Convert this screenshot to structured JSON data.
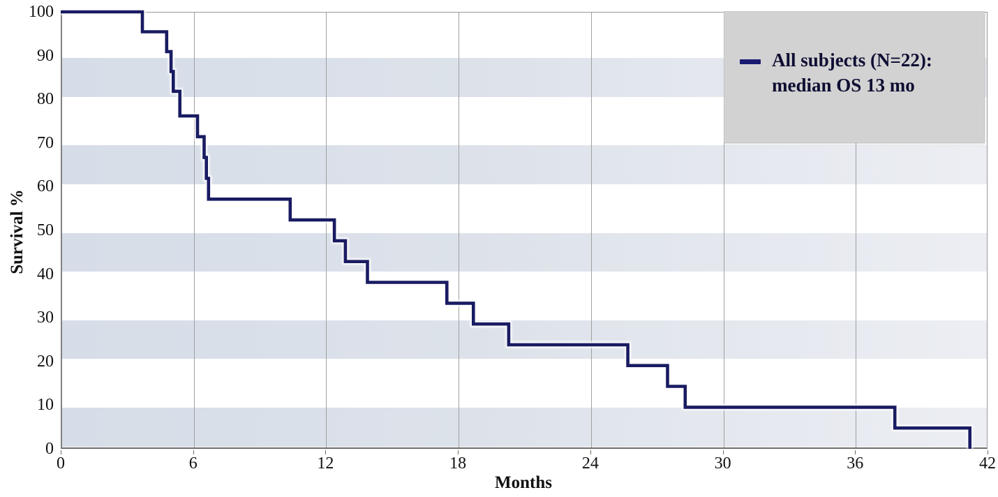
{
  "chart_data": {
    "type": "line",
    "subtype": "kaplan-meier-step",
    "title": "",
    "xlabel": "Months",
    "ylabel": "Survival %",
    "xlim": [
      0,
      42
    ],
    "ylim": [
      0,
      100
    ],
    "x_ticks": [
      0,
      6,
      12,
      18,
      24,
      30,
      36,
      42
    ],
    "y_ticks": [
      0,
      10,
      20,
      30,
      40,
      50,
      60,
      70,
      80,
      90,
      100
    ],
    "grid": "vertical-gridlines-and-horizontal-decade-bands",
    "band_decades": [
      0,
      20,
      40,
      60,
      80
    ],
    "legend_position": "top-right",
    "series": [
      {
        "name": "All subjects (N=22): median OS 13 mo",
        "color": "#191b62",
        "start": [
          0,
          100
        ],
        "drops": [
          [
            3.7,
            95.45
          ],
          [
            4.8,
            90.91
          ],
          [
            5.0,
            86.36
          ],
          [
            5.1,
            81.82
          ],
          [
            5.4,
            76.19
          ],
          [
            6.2,
            71.43
          ],
          [
            6.5,
            66.67
          ],
          [
            6.6,
            61.9
          ],
          [
            6.7,
            57.14
          ],
          [
            10.4,
            52.38
          ],
          [
            12.4,
            47.62
          ],
          [
            12.9,
            42.86
          ],
          [
            13.9,
            38.1
          ],
          [
            17.5,
            33.33
          ],
          [
            18.7,
            28.57
          ],
          [
            20.3,
            23.81
          ],
          [
            25.7,
            19.05
          ],
          [
            27.5,
            14.29
          ],
          [
            28.3,
            9.52
          ],
          [
            37.8,
            4.76
          ],
          [
            41.2,
            0
          ]
        ]
      }
    ]
  },
  "legend": {
    "line1": "All subjects (N=22):",
    "line2": "median OS 13 mo"
  },
  "axes": {
    "y_title": "Survival %",
    "x_title": "Months"
  },
  "colors": {
    "curve": "#191b62",
    "curve_halo": "#ffffff",
    "band_left": "#d6dde8",
    "band_right": "#eceef3",
    "gridline": "#a0a0a0",
    "legend_bg": "#d2d2d2",
    "text": "#111111"
  }
}
